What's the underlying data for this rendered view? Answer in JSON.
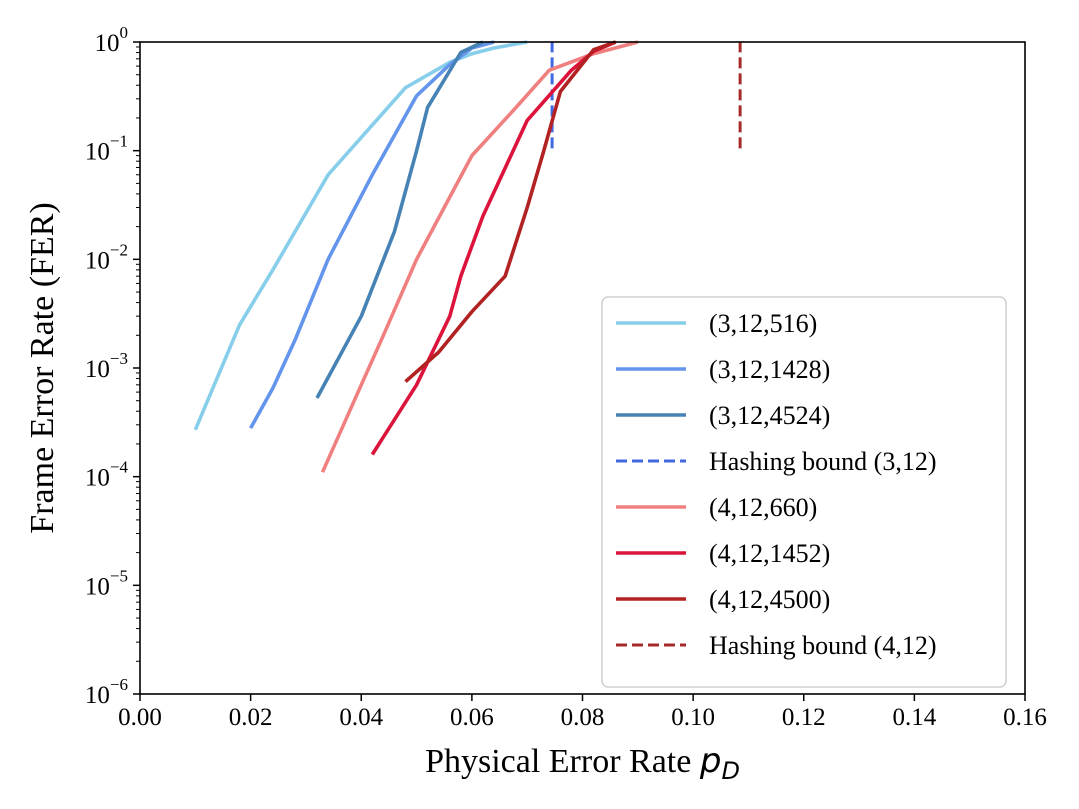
{
  "chart_data": {
    "type": "line",
    "xlabel": "Physical Error Rate",
    "xlabel_symbol": "p",
    "xlabel_subscript": "D",
    "ylabel": "Frame Error Rate (FER)",
    "xlim": [
      0.0,
      0.16
    ],
    "ylim": [
      1e-06,
      1
    ],
    "yscale": "log",
    "xticks": [
      "0.00",
      "0.02",
      "0.04",
      "0.06",
      "0.08",
      "0.10",
      "0.12",
      "0.14",
      "0.16"
    ],
    "yticks": [
      {
        "base": "10",
        "exp": "0"
      },
      {
        "base": "10",
        "exp": "−1"
      },
      {
        "base": "10",
        "exp": "−2"
      },
      {
        "base": "10",
        "exp": "−3"
      },
      {
        "base": "10",
        "exp": "−4"
      },
      {
        "base": "10",
        "exp": "−5"
      },
      {
        "base": "10",
        "exp": "−6"
      }
    ],
    "legend_position": "lower-right",
    "series": [
      {
        "name": "(3,12,516)",
        "color": "#87CEEB",
        "style": "solid",
        "x": [
          0.01,
          0.018,
          0.024,
          0.034,
          0.048,
          0.056,
          0.06,
          0.064,
          0.07
        ],
        "y": [
          0.00027,
          0.0025,
          0.008,
          0.06,
          0.38,
          0.65,
          0.78,
          0.88,
          1.0
        ]
      },
      {
        "name": "(3,12,1428)",
        "color": "#6495ED",
        "style": "solid",
        "x": [
          0.02,
          0.024,
          0.028,
          0.034,
          0.042,
          0.05,
          0.056,
          0.06,
          0.064
        ],
        "y": [
          0.00028,
          0.00065,
          0.0018,
          0.01,
          0.06,
          0.32,
          0.62,
          0.88,
          1.0
        ]
      },
      {
        "name": "(3,12,4524)",
        "color": "#4682B4",
        "style": "solid",
        "x": [
          0.032,
          0.04,
          0.046,
          0.05,
          0.052,
          0.058,
          0.062
        ],
        "y": [
          0.00053,
          0.003,
          0.018,
          0.1,
          0.25,
          0.8,
          1.0
        ]
      },
      {
        "name": "Hashing bound (3,12)",
        "color": "#4169E1",
        "style": "dashed",
        "x": [
          0.0745,
          0.0745
        ],
        "y": [
          0.105,
          1.0
        ]
      },
      {
        "name": "(4,12,660)",
        "color": "#F08080",
        "style": "solid",
        "x": [
          0.033,
          0.04,
          0.044,
          0.05,
          0.06,
          0.068,
          0.074,
          0.082,
          0.09
        ],
        "y": [
          0.00011,
          0.0007,
          0.002,
          0.01,
          0.09,
          0.25,
          0.55,
          0.78,
          1.0
        ]
      },
      {
        "name": "(4,12,1452)",
        "color": "#DC143C",
        "style": "solid",
        "x": [
          0.042,
          0.05,
          0.056,
          0.058,
          0.062,
          0.07,
          0.078,
          0.082,
          0.086
        ],
        "y": [
          0.00016,
          0.0007,
          0.003,
          0.007,
          0.025,
          0.19,
          0.55,
          0.82,
          1.0
        ]
      },
      {
        "name": "(4,12,4500)",
        "color": "#B22222",
        "style": "solid",
        "x": [
          0.048,
          0.054,
          0.06,
          0.066,
          0.07,
          0.073,
          0.076,
          0.082,
          0.086
        ],
        "y": [
          0.00075,
          0.0014,
          0.0033,
          0.007,
          0.03,
          0.1,
          0.35,
          0.85,
          1.0
        ]
      },
      {
        "name": "Hashing bound (4,12)",
        "color": "#A52A2A",
        "style": "dashed",
        "x": [
          0.1085,
          0.1085
        ],
        "y": [
          0.105,
          1.0
        ]
      }
    ]
  }
}
